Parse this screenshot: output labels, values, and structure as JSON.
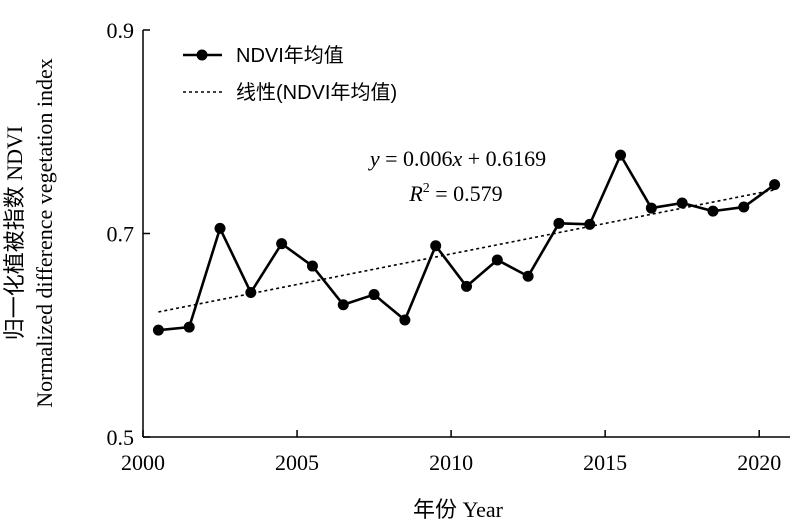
{
  "chart_data": {
    "type": "line",
    "x": [
      2000,
      2001,
      2002,
      2003,
      2004,
      2005,
      2006,
      2007,
      2008,
      2009,
      2010,
      2011,
      2012,
      2013,
      2014,
      2015,
      2016,
      2017,
      2018,
      2019,
      2020
    ],
    "series": [
      {
        "name": "NDVI年均值",
        "values": [
          0.605,
          0.608,
          0.705,
          0.642,
          0.69,
          0.668,
          0.63,
          0.64,
          0.615,
          0.688,
          0.648,
          0.674,
          0.658,
          0.71,
          0.709,
          0.777,
          0.725,
          0.73,
          0.722,
          0.726,
          0.748
        ],
        "color": "#000000",
        "marker": "circle"
      },
      {
        "name": "线性(NDVI年均值)",
        "trendline": {
          "slope": 0.006,
          "intercept": 0.6169
        },
        "color": "#000000",
        "style": "dotted"
      }
    ],
    "xlabel": "年份 Year",
    "ylabel_line1": "归一化植被指数 NDVI",
    "ylabel_line2": "Normalized difference vegetation index",
    "xlim": [
      2000,
      2021
    ],
    "ylim": [
      0.5,
      0.9
    ],
    "xticks": [
      "2000",
      "2005",
      "2010",
      "2015",
      "2020"
    ],
    "yticks": [
      "0.5",
      "0.7",
      "0.9"
    ],
    "legend_position": "top-left",
    "grid": false,
    "annotation": {
      "equation": {
        "y": "y",
        "eq1": " = 0.006",
        "x": "x",
        "eq2": " + 0.6169"
      },
      "r2": {
        "r": "R",
        "sup": "2",
        "eq": " = 0.579"
      }
    }
  }
}
